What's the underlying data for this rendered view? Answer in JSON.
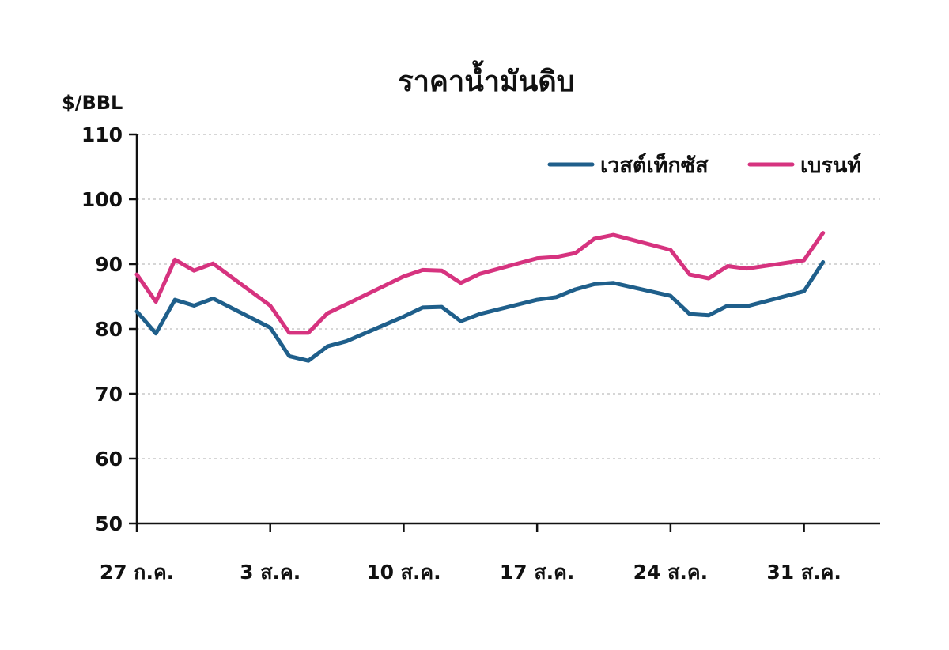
{
  "chart_data": {
    "type": "line",
    "title": "ราคาน้ำมันดิบ",
    "ylabel": "$/BBL",
    "xlabel": "",
    "ylim": [
      50,
      110
    ],
    "yticks": [
      50,
      60,
      70,
      80,
      90,
      100,
      110
    ],
    "xlim": [
      0,
      39
    ],
    "xticks": [
      {
        "x": 0,
        "label": "27 ก.ค."
      },
      {
        "x": 7,
        "label": "3 ส.ค."
      },
      {
        "x": 14,
        "label": "10 ส.ค."
      },
      {
        "x": 21,
        "label": "17 ส.ค."
      },
      {
        "x": 28,
        "label": "24 ส.ค."
      },
      {
        "x": 35,
        "label": "31 ส.ค."
      }
    ],
    "grid": true,
    "legend_position": "top-right",
    "series": [
      {
        "name": "เวสต์เท็กซัส",
        "color": "#1f5f8b",
        "x": [
          0,
          1,
          2,
          3,
          4,
          7,
          8,
          9,
          10,
          11,
          14,
          15,
          16,
          17,
          18,
          21,
          22,
          23,
          24,
          25,
          28,
          29,
          30,
          31,
          32,
          35,
          36
        ],
        "values": [
          82.7,
          79.3,
          84.5,
          83.6,
          84.7,
          80.2,
          75.8,
          75.1,
          77.3,
          78.1,
          81.9,
          83.3,
          83.4,
          81.2,
          82.3,
          84.5,
          84.9,
          86.1,
          86.9,
          87.1,
          85.1,
          82.3,
          82.1,
          83.6,
          83.5,
          85.8,
          90.3
        ]
      },
      {
        "name": "เบรนท์",
        "color": "#d6337f",
        "x": [
          0,
          1,
          2,
          3,
          4,
          7,
          8,
          9,
          10,
          11,
          14,
          15,
          16,
          17,
          18,
          21,
          22,
          23,
          24,
          25,
          28,
          29,
          30,
          31,
          32,
          35,
          36
        ],
        "values": [
          88.4,
          84.2,
          90.7,
          89.0,
          90.1,
          83.6,
          79.4,
          79.4,
          82.4,
          83.8,
          88.1,
          89.1,
          89.0,
          87.1,
          88.5,
          90.9,
          91.1,
          91.7,
          93.9,
          94.5,
          92.2,
          88.4,
          87.8,
          89.7,
          89.3,
          90.6,
          94.8
        ]
      }
    ]
  }
}
